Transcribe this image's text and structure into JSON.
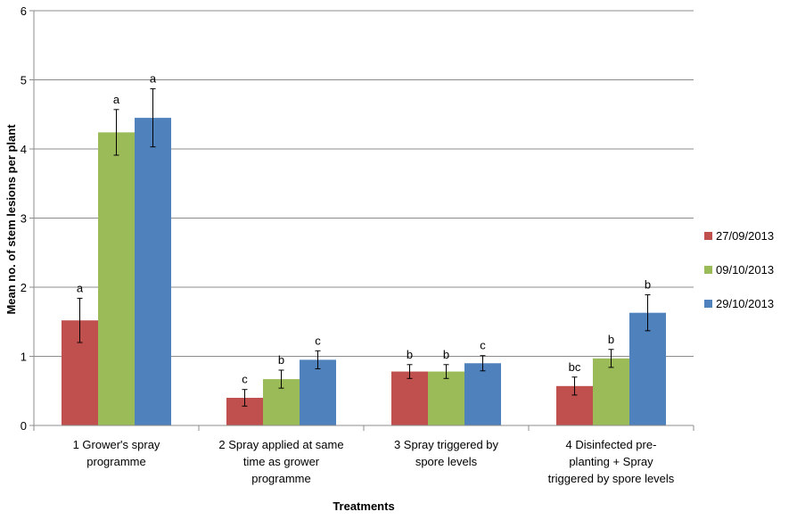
{
  "chart_data": {
    "type": "bar",
    "title": "",
    "xlabel": "Treatments",
    "ylabel": "Mean no. of stem lesions per plant",
    "ylim": [
      0,
      6
    ],
    "yticks": [
      "0",
      "1",
      "2",
      "3",
      "4",
      "5",
      "6"
    ],
    "grid": true,
    "legend_position": "right",
    "categories": [
      [
        "1 Grower's spray",
        "programme"
      ],
      [
        "2 Spray applied at same",
        "time as grower",
        "programme"
      ],
      [
        "3 Spray triggered by",
        "spore levels"
      ],
      [
        "4 Disinfected pre-",
        "planting + Spray",
        "triggered by spore levels"
      ]
    ],
    "series": [
      {
        "name": "27/09/2013",
        "color": "#C0504D",
        "values": [
          1.52,
          0.4,
          0.78,
          0.57
        ],
        "errors": [
          0.32,
          0.12,
          0.1,
          0.13
        ],
        "letters": [
          "a",
          "c",
          "b",
          "bc"
        ]
      },
      {
        "name": "09/10/2013",
        "color": "#9BBB59",
        "values": [
          4.24,
          0.67,
          0.78,
          0.97
        ],
        "errors": [
          0.33,
          0.13,
          0.1,
          0.13
        ],
        "letters": [
          "a",
          "b",
          "b",
          "b"
        ]
      },
      {
        "name": "29/10/2013",
        "color": "#4F81BD",
        "values": [
          4.45,
          0.95,
          0.9,
          1.63
        ],
        "errors": [
          0.42,
          0.13,
          0.11,
          0.26
        ],
        "letters": [
          "a",
          "c",
          "c",
          "b"
        ]
      }
    ]
  }
}
